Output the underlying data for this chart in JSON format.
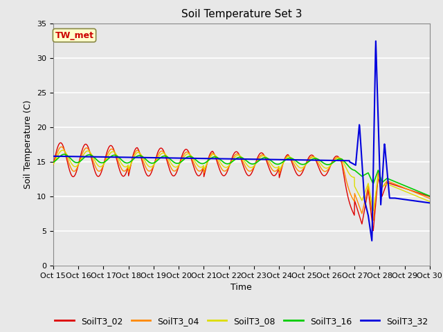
{
  "title": "Soil Temperature Set 3",
  "xlabel": "Time",
  "ylabel": "Soil Temperature (C)",
  "ylim": [
    0,
    35
  ],
  "yticks": [
    0,
    5,
    10,
    15,
    20,
    25,
    30,
    35
  ],
  "xtick_labels": [
    "Oct 15",
    "Oct 16",
    "Oct 17",
    "Oct 18",
    "Oct 19",
    "Oct 20",
    "Oct 21",
    "Oct 22",
    "Oct 23",
    "Oct 24",
    "Oct 25",
    "Oct 26",
    "Oct 27",
    "Oct 28",
    "Oct 29",
    "Oct 30"
  ],
  "colors": {
    "SoilT3_02": "#dd0000",
    "SoilT3_04": "#ff8800",
    "SoilT3_08": "#dddd00",
    "SoilT3_16": "#00cc00",
    "SoilT3_32": "#0000dd"
  },
  "annotation_text": "TW_met",
  "annotation_color": "#cc0000",
  "annotation_bg": "#ffffcc",
  "fig_facecolor": "#e8e8e8",
  "plot_facecolor": "#e8e8e8",
  "grid_color": "#ffffff",
  "title_fontsize": 11,
  "label_fontsize": 9,
  "tick_fontsize": 8,
  "legend_fontsize": 9
}
